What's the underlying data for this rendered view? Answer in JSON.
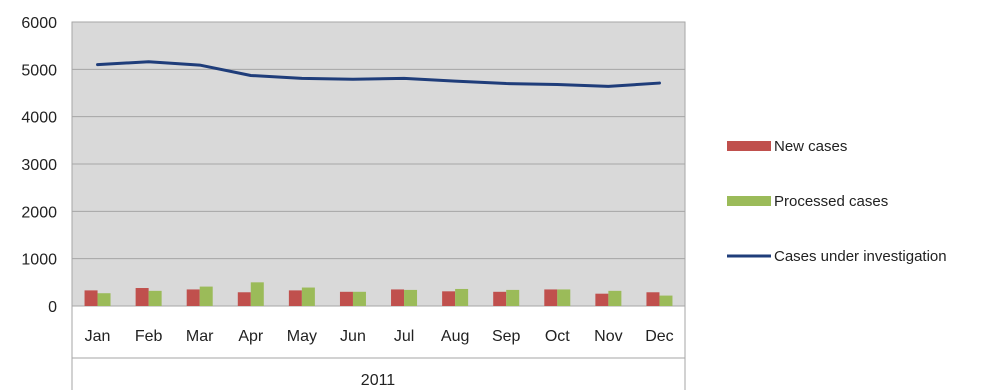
{
  "chart_data": {
    "type": "bar",
    "categories": [
      "Jan",
      "Feb",
      "Mar",
      "Apr",
      "May",
      "Jun",
      "Jul",
      "Aug",
      "Sep",
      "Oct",
      "Nov",
      "Dec"
    ],
    "xlabel": "2011",
    "ylim": [
      0,
      6000
    ],
    "yticks": [
      0,
      1000,
      2000,
      3000,
      4000,
      5000,
      6000
    ],
    "grid": true,
    "legend_placement": "right",
    "series": [
      {
        "name": "New cases",
        "type": "bar",
        "color": "#c0504d",
        "values": [
          330,
          380,
          350,
          290,
          330,
          300,
          350,
          310,
          300,
          350,
          260,
          290
        ]
      },
      {
        "name": "Processed cases",
        "type": "bar",
        "color": "#9bbb59",
        "values": [
          270,
          320,
          410,
          500,
          390,
          300,
          340,
          360,
          340,
          350,
          320,
          220
        ]
      },
      {
        "name": "Cases under investigation",
        "type": "line",
        "color": "#1f3d7a",
        "values": [
          5100,
          5160,
          5090,
          4870,
          4810,
          4790,
          4810,
          4750,
          4700,
          4680,
          4640,
          4710
        ]
      }
    ]
  }
}
